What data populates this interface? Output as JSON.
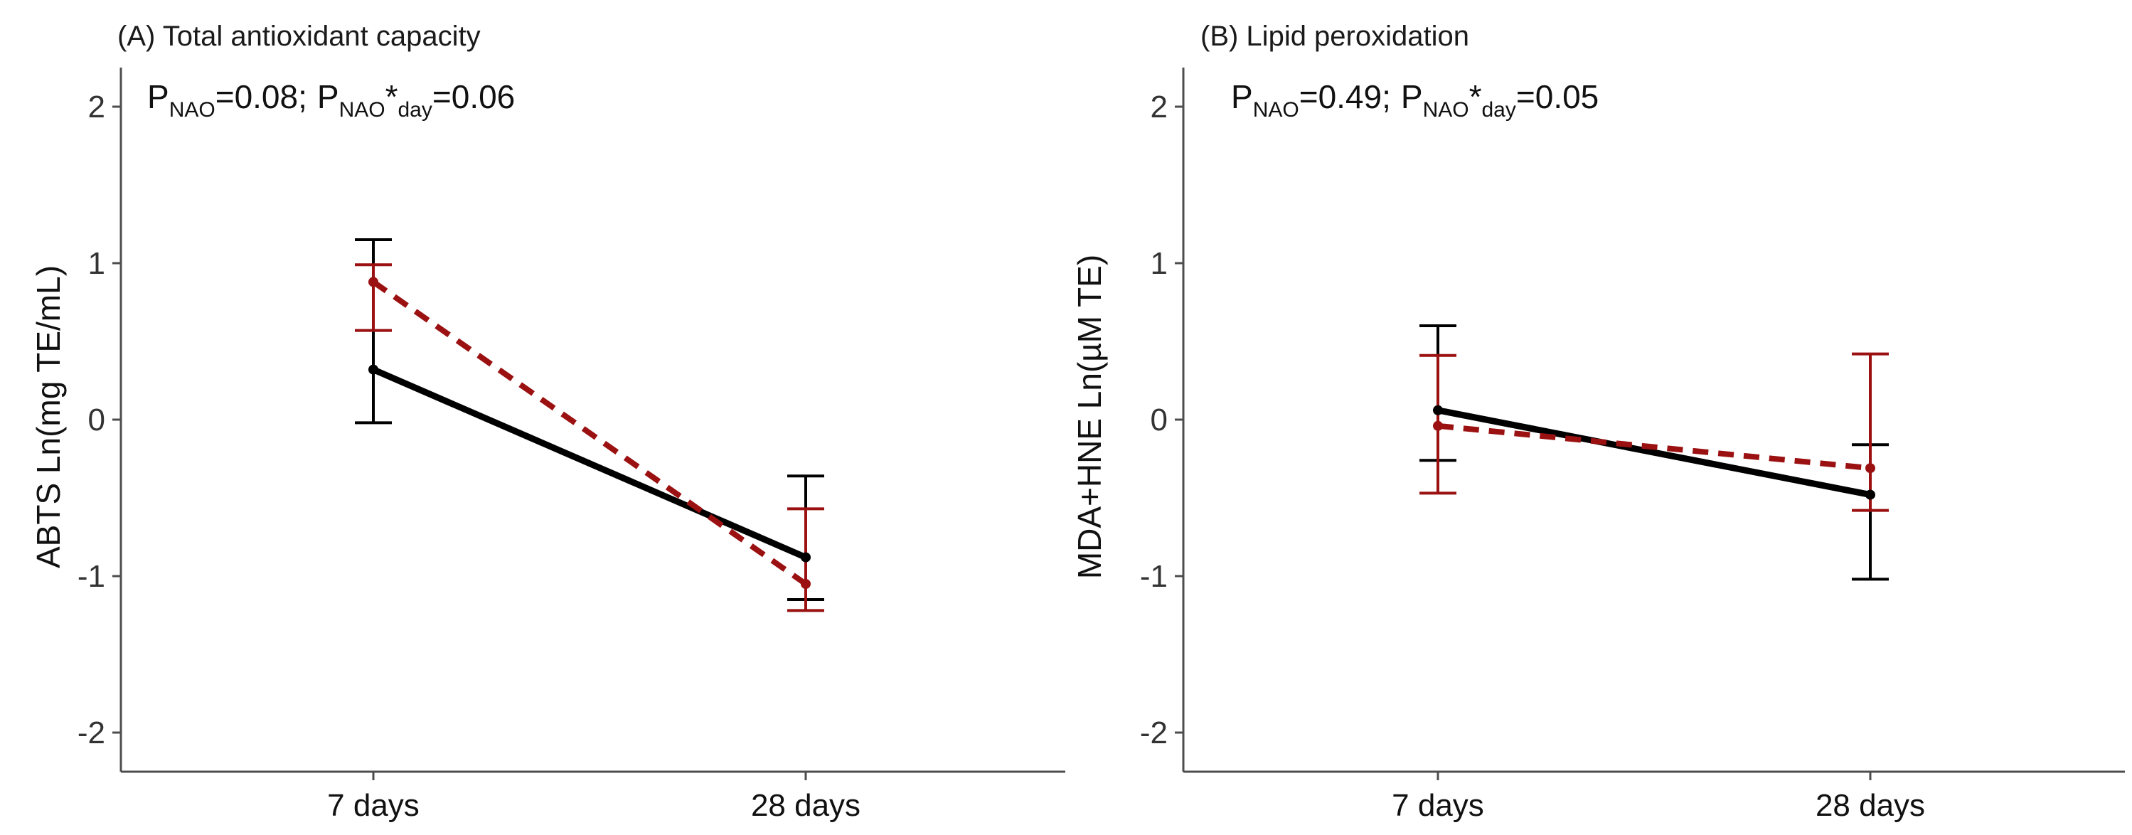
{
  "chart_data": [
    {
      "type": "line",
      "title": "(A) Total antioxidant capacity",
      "stats": {
        "p_nao_label": "P",
        "p_nao_sub": "NAO",
        "p_nao_value": "=0.08;",
        "p_int_label": "P",
        "p_int_sub_a": "NAO",
        "p_int_star": "*",
        "p_int_sub_b": "day",
        "p_int_value": "=0.06"
      },
      "xlabel": "",
      "ylabel": "ABTS Ln(mg TE/mL)",
      "categories": [
        "7 days",
        "28 days"
      ],
      "ylim": [
        -2.25,
        2.25
      ],
      "yticks": [
        -2,
        -1,
        0,
        1,
        2
      ],
      "ytick_labels": [
        "-2",
        "-1",
        "0",
        "1",
        "2"
      ],
      "series": [
        {
          "name": "black-solid",
          "color": "#000000",
          "dashed": false,
          "values": [
            0.32,
            -0.88
          ],
          "lower": [
            -0.02,
            -1.15
          ],
          "upper": [
            1.15,
            -0.36
          ]
        },
        {
          "name": "red-dashed",
          "color": "#9b1111",
          "dashed": true,
          "values": [
            0.88,
            -1.05
          ],
          "lower": [
            0.57,
            -1.22
          ],
          "upper": [
            0.99,
            -0.57
          ]
        }
      ]
    },
    {
      "type": "line",
      "title": "(B) Lipid peroxidation",
      "stats": {
        "p_nao_label": "P",
        "p_nao_sub": "NAO",
        "p_nao_value": "=0.49;",
        "p_int_label": "P",
        "p_int_sub_a": "NAO",
        "p_int_star": "*",
        "p_int_sub_b": "day",
        "p_int_value": "=0.05"
      },
      "xlabel": "",
      "ylabel": "MDA+HNE Ln(µM TE)",
      "categories": [
        "7 days",
        "28 days"
      ],
      "ylim": [
        -2.25,
        2.25
      ],
      "yticks": [
        -2,
        -1,
        0,
        1,
        2
      ],
      "ytick_labels": [
        "-2",
        "-1",
        "0",
        "1",
        "2"
      ],
      "series": [
        {
          "name": "black-solid",
          "color": "#000000",
          "dashed": false,
          "values": [
            0.06,
            -0.48
          ],
          "lower": [
            -0.26,
            -1.02
          ],
          "upper": [
            0.6,
            -0.16
          ]
        },
        {
          "name": "red-dashed",
          "color": "#9b1111",
          "dashed": true,
          "values": [
            -0.04,
            -0.31
          ],
          "lower": [
            -0.47,
            -0.58
          ],
          "upper": [
            0.41,
            0.42
          ]
        }
      ]
    }
  ]
}
